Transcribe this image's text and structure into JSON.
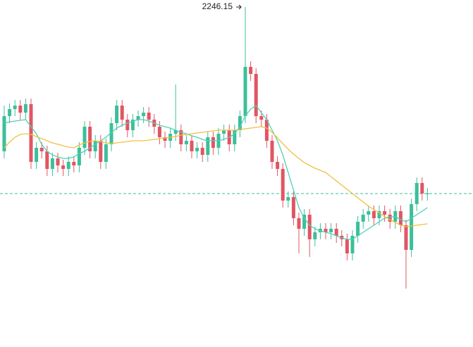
{
  "chart_data": {
    "type": "candlestick",
    "open": [
      2041,
      2091,
      2101,
      2106,
      2096,
      2108,
      2026,
      2046,
      2041,
      2016,
      2031,
      2021,
      2016,
      2026,
      2021,
      2046,
      2076,
      2041,
      2056,
      2026,
      2051,
      2081,
      2106,
      2086,
      2071,
      2086,
      2091,
      2096,
      2086,
      2076,
      2061,
      2056,
      2066,
      2071,
      2051,
      2056,
      2041,
      2046,
      2036,
      2061,
      2046,
      2066,
      2071,
      2051,
      2071,
      2091,
      2161,
      2151,
      2091,
      2086,
      2056,
      2026,
      2016,
      1971,
      1976,
      1946,
      1931,
      1951,
      1916,
      1926,
      1931,
      1926,
      1931,
      1921,
      1916,
      1896,
      1921,
      1941,
      1951,
      1956,
      1946,
      1956,
      1951,
      1941,
      1956,
      1936,
      1901,
      1966,
      1996,
      1981
    ],
    "high": [
      2106,
      2109,
      2114,
      2114,
      2116,
      2116,
      2054,
      2054,
      2049,
      2039,
      2039,
      2029,
      2034,
      2034,
      2054,
      2084,
      2084,
      2064,
      2064,
      2059,
      2089,
      2114,
      2114,
      2094,
      2094,
      2099,
      2104,
      2104,
      2094,
      2084,
      2069,
      2074,
      2136,
      2079,
      2064,
      2064,
      2054,
      2054,
      2069,
      2069,
      2074,
      2079,
      2079,
      2079,
      2099,
      2246.15,
      2169,
      2159,
      2099,
      2094,
      2064,
      2034,
      2024,
      1984,
      1984,
      1954,
      1959,
      1959,
      1934,
      1939,
      1939,
      1939,
      1939,
      1929,
      1924,
      1929,
      1949,
      1959,
      1964,
      1964,
      1964,
      1964,
      1959,
      1964,
      1964,
      1944,
      1974,
      2004,
      2004,
      1989
    ],
    "low": [
      2031,
      2081,
      2091,
      2086,
      2086,
      2016,
      2016,
      2031,
      2006,
      2006,
      2011,
      2006,
      2006,
      2011,
      2011,
      2036,
      2031,
      2031,
      2016,
      2016,
      2041,
      2071,
      2076,
      2061,
      2061,
      2076,
      2081,
      2076,
      2066,
      2051,
      2046,
      2046,
      2056,
      2041,
      2041,
      2031,
      2031,
      2026,
      2026,
      2036,
      2036,
      2056,
      2041,
      2041,
      2061,
      2081,
      2141,
      2081,
      2076,
      2046,
      2016,
      2006,
      1961,
      1961,
      1936,
      1896,
      1921,
      1891,
      1906,
      1916,
      1916,
      1916,
      1911,
      1906,
      1886,
      1886,
      1911,
      1931,
      1941,
      1936,
      1936,
      1941,
      1931,
      1931,
      1926,
      1846,
      1891,
      1956,
      1971,
      1971
    ],
    "close": [
      2091,
      2101,
      2106,
      2096,
      2108,
      2026,
      2046,
      2041,
      2016,
      2031,
      2021,
      2016,
      2026,
      2021,
      2046,
      2076,
      2041,
      2056,
      2026,
      2051,
      2081,
      2106,
      2086,
      2071,
      2086,
      2091,
      2096,
      2086,
      2076,
      2061,
      2056,
      2066,
      2071,
      2051,
      2056,
      2041,
      2046,
      2036,
      2061,
      2046,
      2066,
      2071,
      2051,
      2071,
      2091,
      2161,
      2151,
      2091,
      2086,
      2056,
      2026,
      2016,
      1971,
      1976,
      1946,
      1931,
      1951,
      1916,
      1926,
      1931,
      1926,
      1931,
      1921,
      1916,
      1896,
      1921,
      1941,
      1951,
      1956,
      1946,
      1956,
      1951,
      1941,
      1956,
      1936,
      1901,
      1966,
      1996,
      1981,
      1981
    ],
    "up_color": "#3cbf9a",
    "down_color": "#e25563",
    "moving_averages": [
      {
        "color": "#4fd1b7",
        "values": [
          2081,
          2083,
          2084,
          2085,
          2086,
          2076,
          2066,
          2051,
          2041,
          2036,
          2033,
          2031,
          2031,
          2033,
          2038,
          2041,
          2046,
          2051,
          2056,
          2061,
          2068,
          2074,
          2078,
          2081,
          2084,
          2086,
          2086,
          2084,
          2081,
          2078,
          2076,
          2074,
          2071,
          2068,
          2066,
          2063,
          2061,
          2058,
          2056,
          2056,
          2056,
          2058,
          2061,
          2066,
          2076,
          2091,
          2101,
          2106,
          2096,
          2086,
          2071,
          2056,
          2036,
          2011,
          1986,
          1961,
          1946,
          1936,
          1931,
          1928,
          1926,
          1924,
          1921,
          1918,
          1916,
          1916,
          1921,
          1926,
          1931,
          1936,
          1941,
          1946,
          1948,
          1948,
          1944,
          1941,
          1946,
          1951,
          1956,
          1961
        ]
      },
      {
        "color": "#f0c040",
        "values": [
          2046,
          2054,
          2061,
          2065,
          2066,
          2065,
          2062,
          2059,
          2056,
          2053,
          2051,
          2049,
          2047,
          2046,
          2050,
          2053,
          2055,
          2056,
          2055,
          2053,
          2052,
          2053,
          2054,
          2055,
          2056,
          2056,
          2056,
          2057,
          2058,
          2059,
          2060,
          2061,
          2062,
          2064,
          2065,
          2066,
          2067,
          2068,
          2069,
          2070,
          2071,
          2071,
          2071,
          2071,
          2072,
          2073,
          2074,
          2075,
          2076,
          2074,
          2068,
          2060,
          2052,
          2044,
          2037,
          2031,
          2025,
          2021,
          2017,
          2014,
          2011,
          2005,
          1999,
          1993,
          1987,
          1981,
          1975,
          1969,
          1963,
          1958,
          1954,
          1948,
          1944,
          1940,
          1936,
          1934,
          1935,
          1936,
          1937,
          1938
        ]
      }
    ],
    "price_line": 1981,
    "price_line_color": "#3cbf9a",
    "ylim": [
      1763,
      2256
    ]
  }
}
